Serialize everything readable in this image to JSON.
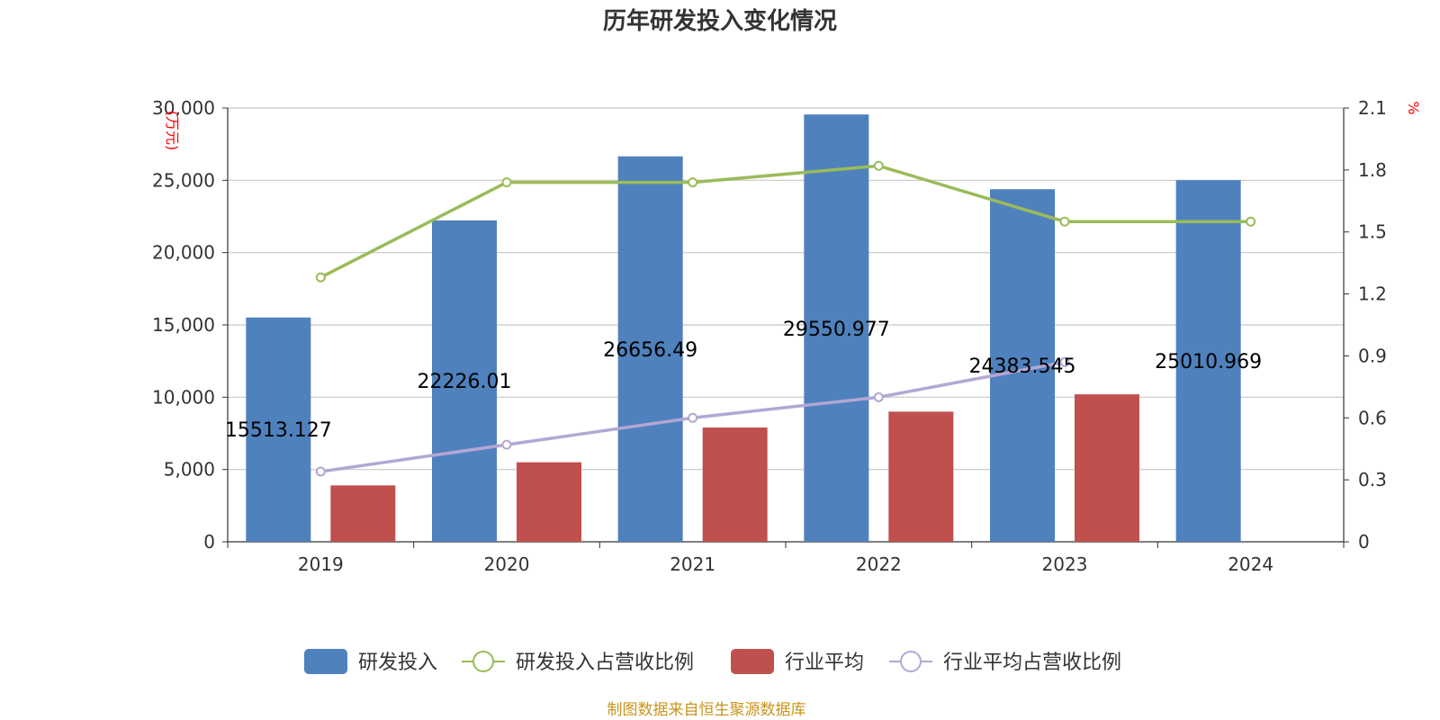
{
  "chart_data": {
    "type": "bar",
    "title": "历年研发投入变化情况",
    "categories": [
      "2019",
      "2020",
      "2021",
      "2022",
      "2023",
      "2024"
    ],
    "y_left": {
      "unit": "(万元)",
      "range": [
        0,
        30000
      ],
      "ticks": [
        "0",
        "5,000",
        "10,000",
        "15,000",
        "20,000",
        "25,000",
        "30,000"
      ]
    },
    "y_right": {
      "unit": "%",
      "range": [
        0,
        2.1
      ],
      "ticks": [
        "0",
        "0.3",
        "0.6",
        "0.9",
        "1.2",
        "1.5",
        "1.8",
        "2.1"
      ]
    },
    "series": [
      {
        "name": "研发投入",
        "kind": "bar",
        "axis": "left",
        "color": "#4f81bd",
        "values": [
          15513.127,
          22226.01,
          26656.49,
          29550.977,
          24383.545,
          25010.969
        ],
        "labels": [
          "15513.127",
          "22226.01",
          "26656.49",
          "29550.977",
          "24383.545",
          "25010.969"
        ]
      },
      {
        "name": "研发投入占营收比例",
        "kind": "line",
        "axis": "right",
        "color": "#9bbb59",
        "values": [
          1.28,
          1.74,
          1.74,
          1.82,
          1.55,
          1.55
        ]
      },
      {
        "name": "行业平均",
        "kind": "bar",
        "axis": "left",
        "color": "#c0504d",
        "values": [
          3900,
          5500,
          7900,
          9000,
          10200,
          null
        ]
      },
      {
        "name": "行业平均占营收比例",
        "kind": "line",
        "axis": "right",
        "color": "#b3a7d3",
        "values": [
          0.34,
          0.47,
          0.6,
          0.7,
          0.87,
          null
        ]
      }
    ],
    "grid": true,
    "legend_position": "bottom"
  },
  "footer": {
    "source": "制图数据来自恒生聚源数据库"
  }
}
